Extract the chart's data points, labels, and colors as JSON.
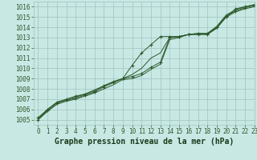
{
  "title": "Graphe pression niveau de la mer (hPa)",
  "background_color": "#c8e8e4",
  "grid_color": "#9ec4be",
  "line_color": "#2d5a2d",
  "marker_color": "#2d5a2d",
  "xlim": [
    -0.5,
    23
  ],
  "ylim": [
    1004.5,
    1016.5
  ],
  "yticks": [
    1005,
    1006,
    1007,
    1008,
    1009,
    1010,
    1011,
    1012,
    1013,
    1014,
    1015,
    1016
  ],
  "xticks": [
    0,
    1,
    2,
    3,
    4,
    5,
    6,
    7,
    8,
    9,
    10,
    11,
    12,
    13,
    14,
    15,
    16,
    17,
    18,
    19,
    20,
    21,
    22,
    23
  ],
  "series": [
    [
      1005.2,
      1006.0,
      1006.7,
      1007.0,
      1007.3,
      1007.5,
      1007.8,
      1008.3,
      1008.7,
      1009.0,
      1010.3,
      1011.5,
      1012.3,
      1013.1,
      1013.1,
      1013.1,
      1013.3,
      1013.3,
      1013.3,
      1014.0,
      1015.0,
      1015.8,
      1016.0,
      1016.2
    ],
    [
      1005.0,
      1005.8,
      1006.5,
      1006.8,
      1007.0,
      1007.3,
      1007.6,
      1008.0,
      1008.4,
      1008.9,
      1009.0,
      1009.3,
      1009.9,
      1010.4,
      1012.8,
      1013.0,
      1013.3,
      1013.3,
      1013.3,
      1013.9,
      1015.0,
      1015.5,
      1015.8,
      1016.0
    ],
    [
      1005.0,
      1005.9,
      1006.6,
      1006.9,
      1007.1,
      1007.4,
      1007.7,
      1008.2,
      1008.6,
      1009.0,
      1009.2,
      1009.5,
      1010.1,
      1010.6,
      1013.0,
      1013.1,
      1013.3,
      1013.4,
      1013.4,
      1014.0,
      1015.1,
      1015.6,
      1015.9,
      1016.1
    ],
    [
      1005.1,
      1006.0,
      1006.7,
      1006.9,
      1007.2,
      1007.5,
      1007.9,
      1008.3,
      1008.7,
      1009.0,
      1009.4,
      1010.0,
      1011.0,
      1011.5,
      1013.0,
      1013.1,
      1013.3,
      1013.4,
      1013.4,
      1014.1,
      1015.2,
      1015.7,
      1016.0,
      1016.2
    ]
  ],
  "marker_indices": [
    0,
    2
  ],
  "title_color": "#2d5a2d",
  "title_fontsize": 7,
  "tick_fontsize": 5.5,
  "label_color": "#2d5a2d",
  "bottom_label_color": "#1a3a1a"
}
